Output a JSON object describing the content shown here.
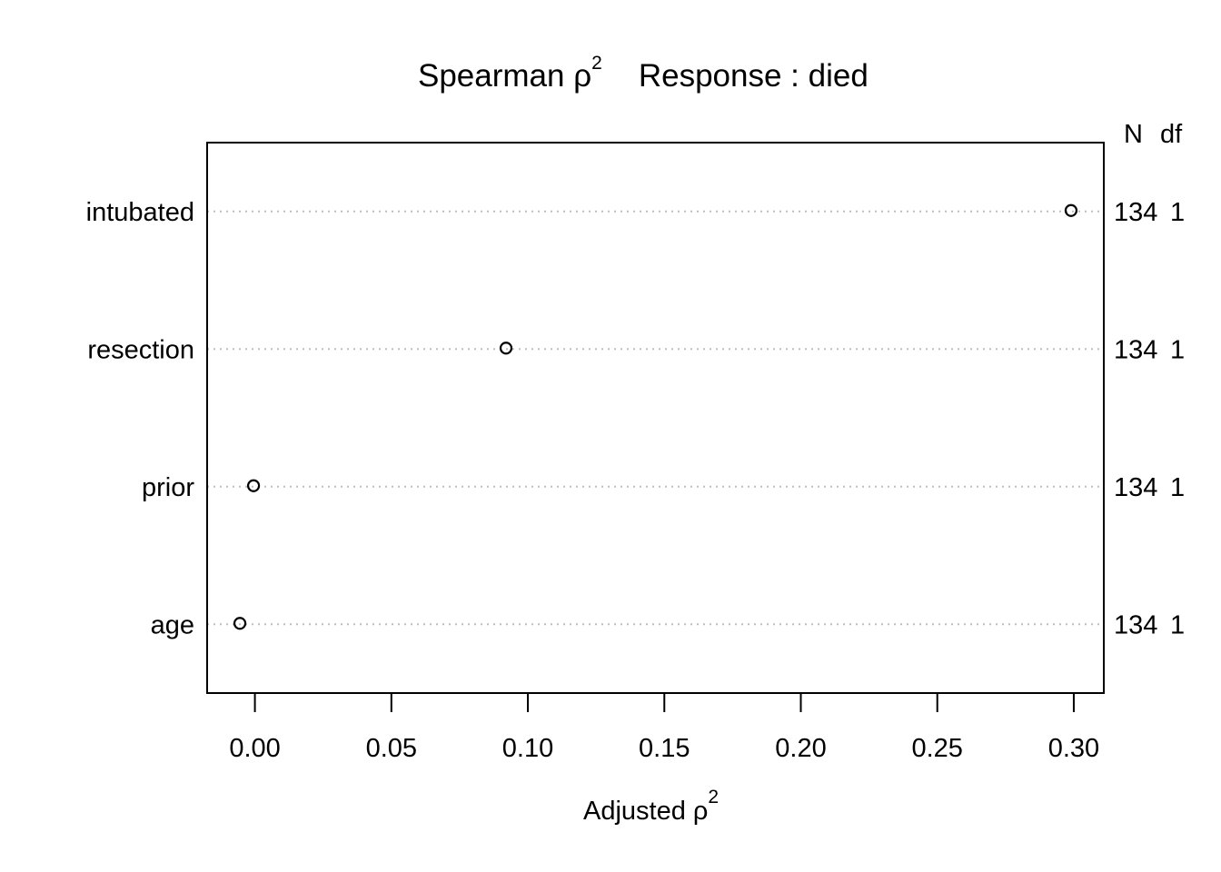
{
  "chart_data": {
    "type": "scatter",
    "title": {
      "prefix": "Spearman ",
      "symbol": "ρ",
      "superscript": "2",
      "response_label": "Response",
      "response_sep": " : ",
      "response_value": "died"
    },
    "xlabel": {
      "text": "Adjusted ",
      "symbol": "ρ",
      "superscript": "2"
    },
    "xlim": [
      -0.0175,
      0.311
    ],
    "xticks": [
      0.0,
      0.05,
      0.1,
      0.15,
      0.2,
      0.25,
      0.3
    ],
    "xtick_labels": [
      "0.00",
      "0.05",
      "0.10",
      "0.15",
      "0.20",
      "0.25",
      "0.30"
    ],
    "grid": "dotted horizontal per category",
    "right_header": {
      "n": "N",
      "df": "df"
    },
    "categories": [
      "intubated",
      "resection",
      "prior",
      "age"
    ],
    "values": [
      0.299,
      0.092,
      -0.0005,
      -0.0055
    ],
    "n": [
      "134",
      "134",
      "134",
      "134"
    ],
    "df": [
      "1",
      "1",
      "1",
      "1"
    ]
  },
  "colors": {
    "foreground": "#000000",
    "gridline": "#bebebe",
    "background": "#ffffff"
  }
}
